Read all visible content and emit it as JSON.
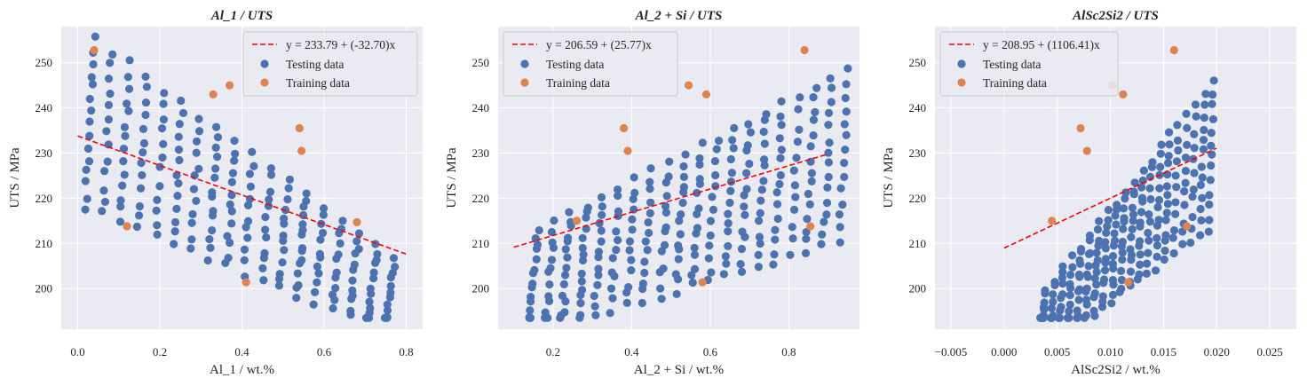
{
  "colors": {
    "background": "#eaeaf2",
    "grid": "#ffffff",
    "testing": "#4c72b0",
    "training": "#dd8452",
    "fit": "#ff0000"
  },
  "legend_labels": {
    "testing": "Testing data",
    "training": "Training data"
  },
  "chart_data": [
    {
      "type": "scatter",
      "title": "Al_1 / UTS",
      "xlabel": "Al_1 / wt.%",
      "ylabel": "UTS / MPa",
      "xlim": [
        -0.04,
        0.84
      ],
      "ylim": [
        191,
        258
      ],
      "xticks": [
        "0.0",
        "0.2",
        "0.4",
        "0.6",
        "0.8"
      ],
      "xtick_values": [
        0.0,
        0.2,
        0.4,
        0.6,
        0.8
      ],
      "yticks": [
        "200",
        "210",
        "220",
        "230",
        "240",
        "250"
      ],
      "ytick_values": [
        200,
        210,
        220,
        230,
        240,
        250
      ],
      "grid": true,
      "legend_position": "top-right",
      "fit": {
        "label": "y = 233.79 + (-32.70)x",
        "intercept": 233.79,
        "slope": -32.7,
        "x_range": [
          0.0,
          0.8
        ]
      },
      "testing_x_range": [
        0.03,
        0.76
      ],
      "training_points": [
        [
          0.04,
          252.8
        ],
        [
          0.33,
          243.0
        ],
        [
          0.37,
          245.0
        ],
        [
          0.54,
          235.5
        ],
        [
          0.545,
          230.5
        ],
        [
          0.12,
          213.8
        ],
        [
          0.41,
          201.4
        ],
        [
          0.68,
          214.7
        ]
      ]
    },
    {
      "type": "scatter",
      "title": "Al_2 + Si / UTS",
      "xlabel": "Al_2 + Si / wt.%",
      "ylabel": "UTS / MPa",
      "xlim": [
        0.06,
        0.98
      ],
      "ylim": [
        191,
        258
      ],
      "xticks": [
        "0.2",
        "0.4",
        "0.6",
        "0.8"
      ],
      "xtick_values": [
        0.2,
        0.4,
        0.6,
        0.8
      ],
      "yticks": [
        "200",
        "210",
        "220",
        "230",
        "240",
        "250"
      ],
      "ytick_values": [
        200,
        210,
        220,
        230,
        240,
        250
      ],
      "grid": true,
      "legend_position": "top-left",
      "fit": {
        "label": "y = 206.59 + (25.77)x",
        "intercept": 206.59,
        "slope": 25.77,
        "x_range": [
          0.1,
          0.9
        ]
      },
      "testing_x_range": [
        0.15,
        0.94
      ],
      "training_points": [
        [
          0.84,
          252.8
        ],
        [
          0.545,
          245.0
        ],
        [
          0.59,
          243.0
        ],
        [
          0.38,
          235.5
        ],
        [
          0.39,
          230.5
        ],
        [
          0.26,
          215.0
        ],
        [
          0.58,
          201.4
        ],
        [
          0.855,
          213.8
        ]
      ]
    },
    {
      "type": "scatter",
      "title": "AlSc2Si2 / UTS",
      "xlabel": "AlSc2Si2 / wt.%",
      "ylabel": "UTS / MPa",
      "xlim": [
        -0.0065,
        0.0275
      ],
      "ylim": [
        191,
        258
      ],
      "xticks": [
        "−0.005",
        "0.000",
        "0.005",
        "0.010",
        "0.015",
        "0.020",
        "0.025"
      ],
      "xtick_values": [
        -0.005,
        0.0,
        0.005,
        0.01,
        0.015,
        0.02,
        0.025
      ],
      "yticks": [
        "200",
        "210",
        "220",
        "230",
        "240",
        "250"
      ],
      "ytick_values": [
        200,
        210,
        220,
        230,
        240,
        250
      ],
      "grid": true,
      "legend_position": "top-left",
      "fit": {
        "label": "y = 208.95 + (1106.41)x",
        "intercept": 208.95,
        "slope": 1106.41,
        "x_range": [
          0.0,
          0.02
        ]
      },
      "testing_x_range": [
        0.0037,
        0.0195
      ],
      "training_points": [
        [
          0.016,
          252.8
        ],
        [
          0.0112,
          243.0
        ],
        [
          0.0102,
          245.0
        ],
        [
          0.0072,
          235.5
        ],
        [
          0.0078,
          230.5
        ],
        [
          0.0045,
          215.0
        ],
        [
          0.0117,
          201.4
        ],
        [
          0.0172,
          213.8
        ]
      ]
    }
  ]
}
